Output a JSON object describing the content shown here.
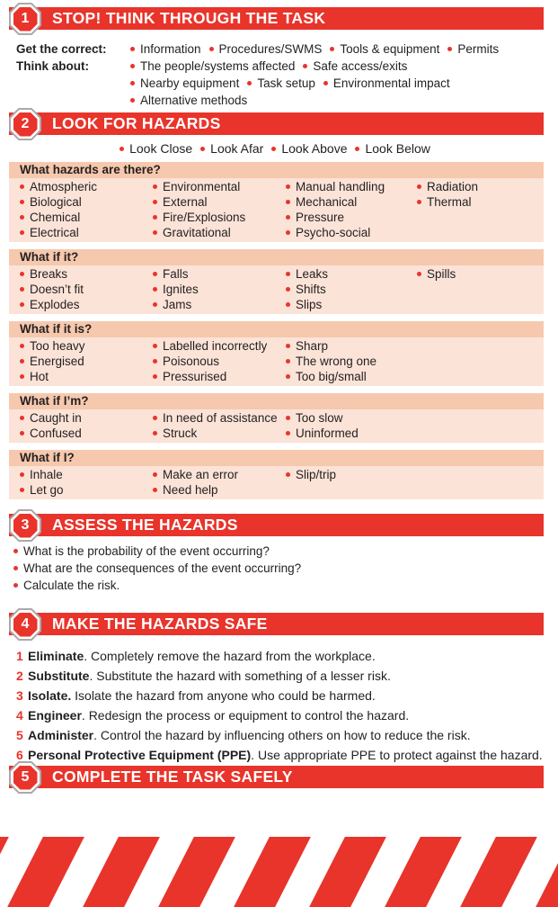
{
  "colors": {
    "red": "#E8342B",
    "band_pink": "#F6C8AD",
    "panel_pink": "#FBE3D7",
    "text": "#231F20",
    "octagon_silver": "#ACA8A9",
    "white": "#FFFFFF"
  },
  "sections": {
    "s1": {
      "number": "1",
      "title": "STOP! THINK THROUGH THE TASK",
      "rows": [
        {
          "label": "Get the correct:",
          "items": [
            "Information",
            "Procedures/SWMS",
            "Tools & equipment",
            "Permits"
          ]
        },
        {
          "label": "Think about:",
          "items": [
            "The people/systems affected",
            "Safe access/exits"
          ]
        },
        {
          "label": "",
          "items": [
            "Nearby equipment",
            "Task setup",
            "Environmental impact"
          ]
        },
        {
          "label": "",
          "items": [
            "Alternative methods"
          ]
        }
      ]
    },
    "s2": {
      "number": "2",
      "title": "LOOK FOR HAZARDS",
      "subtitle_items": [
        "Look Close",
        "Look Afar",
        "Look Above",
        "Look Below"
      ],
      "groups": [
        {
          "heading": "What hazards are there?",
          "columns": [
            [
              "Atmospheric",
              "Biological",
              "Chemical",
              "Electrical"
            ],
            [
              "Environmental",
              "External",
              "Fire/Explosions",
              "Gravitational"
            ],
            [
              "Manual handling",
              "Mechanical",
              "Pressure",
              "Psycho-social"
            ],
            [
              "Radiation",
              "Thermal"
            ]
          ]
        },
        {
          "heading": "What if it?",
          "columns": [
            [
              "Breaks",
              "Doesn’t fit",
              "Explodes"
            ],
            [
              "Falls",
              "Ignites",
              "Jams"
            ],
            [
              "Leaks",
              "Shifts",
              "Slips"
            ],
            [
              "Spills"
            ]
          ]
        },
        {
          "heading": "What if it is?",
          "columns": [
            [
              "Too heavy",
              "Energised",
              "Hot"
            ],
            [
              "Labelled incorrectly",
              "Poisonous",
              "Pressurised"
            ],
            [
              "Sharp",
              "The wrong one",
              "Too big/small"
            ],
            []
          ]
        },
        {
          "heading": "What if I’m?",
          "columns": [
            [
              "Caught in",
              "Confused"
            ],
            [
              "In need of assistance",
              "Struck"
            ],
            [
              "Too slow",
              "Uninformed"
            ],
            []
          ]
        },
        {
          "heading": "What if I?",
          "columns": [
            [
              "Inhale",
              "Let go"
            ],
            [
              "Make an error",
              "Need help"
            ],
            [
              "Slip/trip"
            ],
            []
          ]
        }
      ]
    },
    "s3": {
      "number": "3",
      "title": "ASSESS THE HAZARDS",
      "bullets": [
        "What is the probability of the event occurring?",
        "What are the consequences of the event occurring?",
        "Calculate the risk."
      ]
    },
    "s4": {
      "number": "4",
      "title": "MAKE THE HAZARDS SAFE",
      "steps": [
        {
          "num": "1",
          "term": "Eliminate",
          "sep": ". ",
          "desc": "Completely remove the hazard from the workplace."
        },
        {
          "num": "2",
          "term": "Substitute",
          "sep": ". ",
          "desc": "Substitute the hazard with something of a lesser risk."
        },
        {
          "num": "3",
          "term": "Isolate.",
          "sep": " ",
          "desc": "Isolate the hazard from anyone who could be harmed."
        },
        {
          "num": "4",
          "term": "Engineer",
          "sep": ". ",
          "desc": "Redesign the process or equipment to control the hazard."
        },
        {
          "num": "5",
          "term": "Administer",
          "sep": ". ",
          "desc": "Control the hazard by influencing others on how to reduce the risk."
        },
        {
          "num": "6",
          "term": "Personal Protective Equipment (PPE)",
          "sep": ". ",
          "desc": "Use appropriate PPE to protect against the hazard."
        }
      ]
    },
    "s5": {
      "number": "5",
      "title": "COMPLETE THE TASK SAFELY"
    }
  }
}
